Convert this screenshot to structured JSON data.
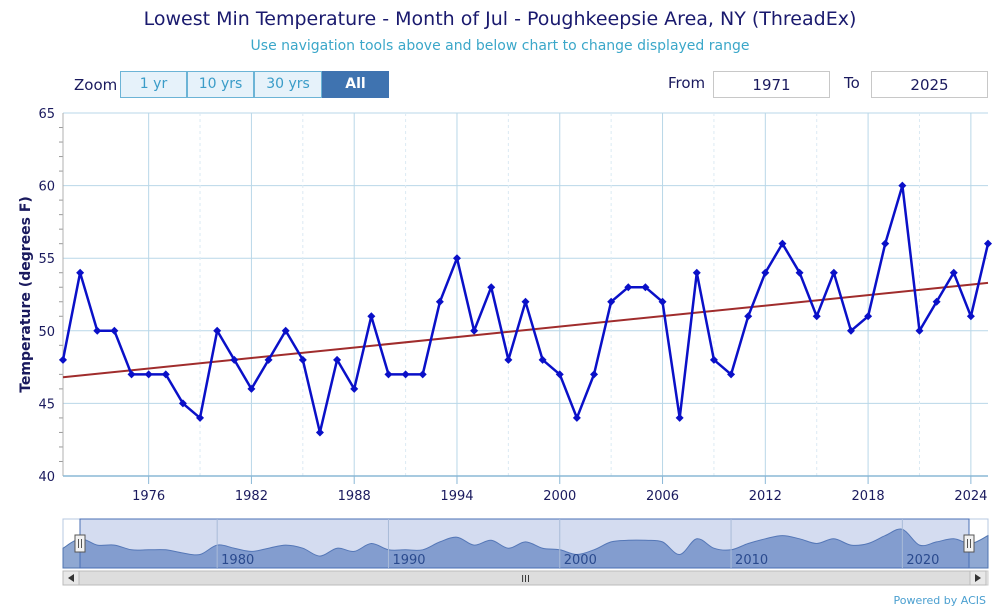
{
  "header": {
    "title": "Lowest Min Temperature - Month of Jul - Poughkeepsie Area, NY (ThreadEx)",
    "subtitle": "Use navigation tools above and below chart to change displayed range"
  },
  "zoom": {
    "label": "Zoom",
    "buttons": [
      "1 yr",
      "10 yrs",
      "30 yrs",
      "All"
    ],
    "active": "All"
  },
  "range": {
    "from_label": "From",
    "from_value": "1971",
    "to_label": "To",
    "to_value": "2025"
  },
  "navigator": {
    "labels": [
      "1980",
      "1990",
      "2000",
      "2010",
      "2020"
    ],
    "scroll_grip": "III"
  },
  "credit": "Powered by ACIS",
  "colors": {
    "series": "#0a10c8",
    "trend": "#a02c2c",
    "grid": "#b9d7e8",
    "active_zoom": "#3f73b0"
  },
  "chart_data": {
    "type": "line",
    "ylabel": "Temperature (degrees F)",
    "xlabel": "",
    "ylim": [
      40,
      65
    ],
    "xlim": [
      1971,
      2025
    ],
    "y_ticks": [
      40,
      45,
      50,
      55,
      60,
      65
    ],
    "x_ticks": [
      1976,
      1982,
      1988,
      1994,
      2000,
      2006,
      2012,
      2018,
      2024
    ],
    "grid": true,
    "series": [
      {
        "x": [
          1971,
          1972,
          1973,
          1974,
          1975,
          1976,
          1977,
          1978,
          1979,
          1980,
          1981,
          1982,
          1983,
          1984,
          1985,
          1986,
          1987,
          1988,
          1989,
          1990,
          1991,
          1992,
          1993,
          1994,
          1995,
          1996,
          1997,
          1998,
          1999,
          2000,
          2001,
          2002,
          2003,
          2004,
          2005,
          2006,
          2007,
          2008,
          2009,
          2010,
          2011,
          2012,
          2013,
          2014,
          2015,
          2016,
          2017,
          2018,
          2019,
          2020,
          2021,
          2022,
          2023,
          2024,
          2025
        ],
        "values": [
          48,
          54,
          50,
          50,
          47,
          47,
          47,
          45,
          44,
          50,
          48,
          46,
          48,
          50,
          48,
          43,
          48,
          46,
          51,
          47,
          47,
          47,
          52,
          55,
          50,
          53,
          48,
          52,
          48,
          47,
          44,
          47,
          52,
          53,
          53,
          52,
          44,
          54,
          48,
          47,
          51,
          54,
          56,
          54,
          51,
          54,
          50,
          51,
          56,
          60,
          50,
          52,
          54,
          51,
          56
        ]
      }
    ],
    "trendline": {
      "x": [
        1971,
        2025
      ],
      "values": [
        46.8,
        53.3
      ]
    }
  }
}
